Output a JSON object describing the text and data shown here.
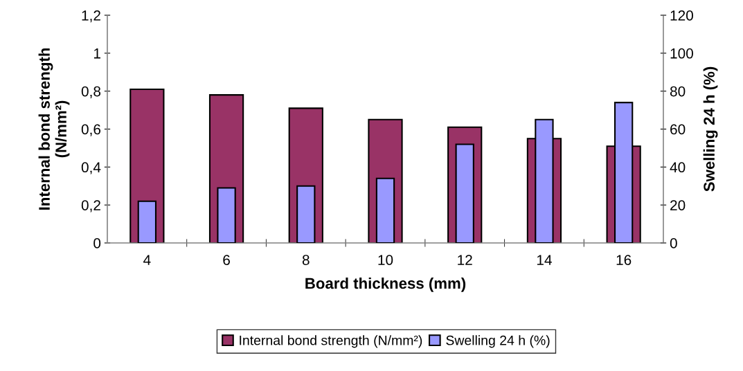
{
  "chart_data": {
    "type": "bar",
    "xlabel": "Board thickness (mm)",
    "ylabel": "Internal bond strength\n(N/mm²)",
    "y2label": "Swelling 24 h (%)",
    "categories": [
      "4",
      "6",
      "8",
      "10",
      "12",
      "14",
      "16"
    ],
    "series": [
      {
        "name": "Internal bond strength (N/mm²)",
        "color": "#993366",
        "values": [
          0.81,
          0.78,
          0.71,
          0.65,
          0.61,
          0.55,
          0.51
        ]
      },
      {
        "name": "Swelling 24 h (%)",
        "color": "#9999ff",
        "axis": "y2",
        "values": [
          22,
          29,
          30,
          34,
          52,
          65,
          74
        ]
      }
    ],
    "ylim": [
      0,
      1.2
    ],
    "yticks": [
      0,
      {
        "value": 0.2,
        "label": "0,2"
      },
      {
        "value": 0.4,
        "label": "0,4"
      },
      {
        "value": 0.6,
        "label": "0,6"
      },
      {
        "value": 0.8,
        "label": "0,8"
      },
      1,
      {
        "value": 1.2,
        "label": "1,2"
      }
    ],
    "y2lim": [
      0,
      120
    ],
    "y2ticks": [
      0,
      20,
      40,
      60,
      80,
      100,
      120
    ],
    "grid": false,
    "legend": "bottom"
  }
}
